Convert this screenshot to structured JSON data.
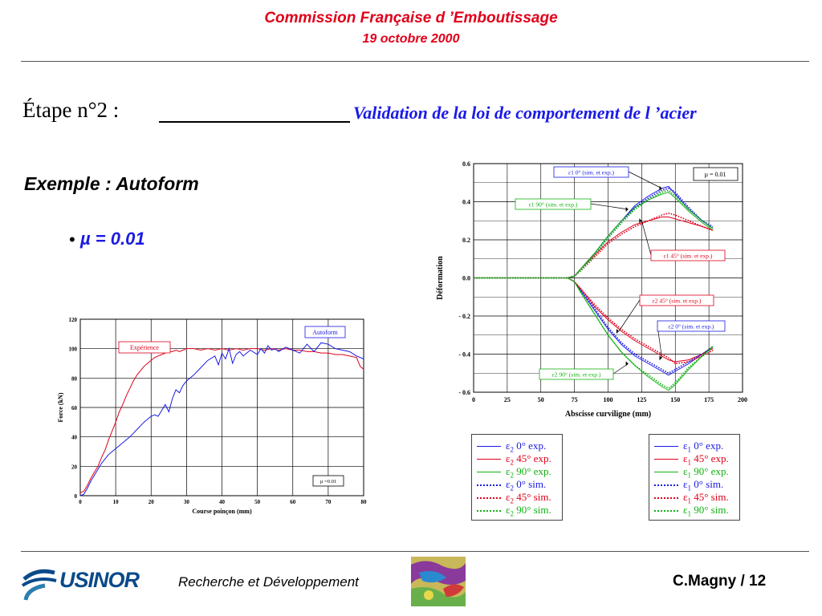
{
  "header": {
    "title": "Commission Française d ’Emboutissage",
    "date": "19 octobre 2000"
  },
  "slide": {
    "step": "Étape n°2 :",
    "step_title": "Validation de la loi de comportement de l ’acier",
    "example": "Exemple : Autoform",
    "bullet": "•",
    "mu_item": "µ = 0.01"
  },
  "footer": {
    "logo_text": "USINOR",
    "department": "Recherche et Développement",
    "page_ref": "C.Magny / 12"
  },
  "colors": {
    "blue": "#1a1ae6",
    "red": "#e0001a",
    "green": "#12b212",
    "header_red": "#e0001a"
  },
  "chart_data": [
    {
      "type": "line",
      "xlabel": "Course poinçon (mm)",
      "ylabel": "Force (kN)",
      "xlim": [
        0,
        80
      ],
      "ylim": [
        0,
        120
      ],
      "xticks": [
        "0",
        "10",
        "20",
        "30",
        "40",
        "50",
        "60",
        "70",
        "80"
      ],
      "yticks": [
        "0",
        "20",
        "40",
        "60",
        "80",
        "100",
        "120"
      ],
      "grid": true,
      "annotations": [
        "Expérience",
        "Autoform",
        "µ =0.01"
      ],
      "series": [
        {
          "name": "Expérience",
          "color": "#e0001a",
          "x": [
            0,
            1,
            2,
            3,
            4,
            5,
            6,
            7,
            8,
            9,
            10,
            11,
            12,
            13,
            14,
            15,
            16,
            17,
            18,
            19,
            20,
            21,
            22,
            23,
            24,
            25,
            26,
            27,
            28,
            29,
            30,
            32,
            34,
            36,
            38,
            40,
            42,
            44,
            46,
            48,
            50,
            52,
            54,
            56,
            58,
            60,
            62,
            64,
            66,
            68,
            70,
            72,
            74,
            76,
            78,
            79,
            80
          ],
          "y": [
            2,
            3,
            7,
            12,
            16,
            20,
            26,
            31,
            38,
            44,
            50,
            57,
            62,
            68,
            73,
            78,
            82,
            85,
            88,
            90,
            92,
            94,
            95,
            96,
            97,
            98,
            98,
            99,
            98,
            99,
            100,
            100,
            99,
            100,
            99,
            100,
            99,
            100,
            99,
            100,
            100,
            99,
            100,
            99,
            100,
            99,
            99,
            98,
            98,
            97,
            97,
            96,
            96,
            95,
            94,
            88,
            86
          ]
        },
        {
          "name": "Autoform",
          "color": "#1a1ae6",
          "x": [
            0,
            1,
            2,
            3,
            4,
            5,
            6,
            7,
            8,
            9,
            10,
            12,
            14,
            16,
            18,
            19,
            20,
            21,
            22,
            23,
            24,
            25,
            26,
            27,
            28,
            29,
            30,
            32,
            34,
            36,
            38,
            39,
            40,
            41,
            42,
            43,
            44,
            45,
            46,
            48,
            50,
            51,
            52,
            53,
            54,
            55,
            56,
            58,
            60,
            62,
            64,
            66,
            68,
            70,
            72,
            74,
            76,
            78,
            80
          ],
          "y": [
            0,
            1,
            5,
            10,
            14,
            18,
            22,
            25,
            28,
            30,
            32,
            36,
            40,
            45,
            50,
            52,
            54,
            55,
            54,
            58,
            62,
            57,
            66,
            72,
            70,
            75,
            78,
            82,
            87,
            92,
            95,
            89,
            97,
            93,
            100,
            90,
            96,
            98,
            95,
            99,
            96,
            100,
            97,
            102,
            99,
            100,
            98,
            101,
            99,
            97,
            103,
            98,
            104,
            103,
            100,
            99,
            98,
            95,
            93
          ]
        }
      ]
    },
    {
      "type": "line",
      "xlabel": "Abscisse curviligne (mm)",
      "ylabel": "Déformation",
      "xlim": [
        0,
        200
      ],
      "ylim": [
        -0.6,
        0.6
      ],
      "xticks": [
        "0",
        "25",
        "50",
        "75",
        "100",
        "125",
        "150",
        "175",
        "200"
      ],
      "yticks": [
        "0.6",
        "0.4",
        "0.2",
        "0.0",
        "- 0.2",
        "- 0.4",
        "- 0.6"
      ],
      "grid": true,
      "annotations": [
        "ε1 0° (sim. et exp.)",
        "ε1 90° (sim. et exp.)",
        "ε1 45° (sim. et exp.)",
        "ε2 45° (sim. et exp.)",
        "ε2 0° (sim. et exp.)",
        "ε2 90° (sim. et exp.)",
        "µ = 0.01"
      ],
      "series": [
        {
          "name": "ε1 0° exp.",
          "color": "#1a1ae6",
          "style": "solid",
          "x": [
            0,
            50,
            70,
            75,
            80,
            90,
            100,
            110,
            120,
            130,
            140,
            145,
            150,
            160,
            170,
            178
          ],
          "y": [
            0,
            0,
            0,
            0.01,
            0.05,
            0.13,
            0.22,
            0.3,
            0.38,
            0.43,
            0.47,
            0.48,
            0.44,
            0.36,
            0.3,
            0.26
          ]
        },
        {
          "name": "ε1 45° exp.",
          "color": "#e0001a",
          "style": "solid",
          "x": [
            0,
            50,
            70,
            75,
            80,
            90,
            100,
            110,
            120,
            130,
            140,
            145,
            150,
            160,
            170,
            178
          ],
          "y": [
            0,
            0,
            0,
            0.01,
            0.05,
            0.12,
            0.19,
            0.24,
            0.28,
            0.3,
            0.32,
            0.32,
            0.31,
            0.29,
            0.27,
            0.25
          ]
        },
        {
          "name": "ε1 90° exp.",
          "color": "#12b212",
          "style": "solid",
          "x": [
            0,
            50,
            70,
            75,
            80,
            90,
            100,
            110,
            120,
            130,
            140,
            145,
            150,
            160,
            170,
            178
          ],
          "y": [
            0,
            0,
            0,
            0.01,
            0.05,
            0.13,
            0.22,
            0.3,
            0.37,
            0.41,
            0.44,
            0.45,
            0.42,
            0.35,
            0.29,
            0.25
          ]
        },
        {
          "name": "ε1 0° sim.",
          "color": "#1a1ae6",
          "style": "dotted",
          "x": [
            0,
            50,
            70,
            75,
            80,
            90,
            100,
            110,
            120,
            130,
            140,
            145,
            150,
            160,
            170,
            178
          ],
          "y": [
            0,
            0,
            0,
            0.01,
            0.04,
            0.12,
            0.21,
            0.29,
            0.37,
            0.42,
            0.46,
            0.47,
            0.45,
            0.37,
            0.3,
            0.27
          ]
        },
        {
          "name": "ε1 45° sim.",
          "color": "#e0001a",
          "style": "dotted",
          "x": [
            0,
            50,
            70,
            75,
            80,
            90,
            100,
            110,
            120,
            130,
            140,
            145,
            150,
            160,
            170,
            178
          ],
          "y": [
            0,
            0,
            0,
            0.01,
            0.04,
            0.11,
            0.18,
            0.23,
            0.27,
            0.3,
            0.33,
            0.34,
            0.33,
            0.3,
            0.27,
            0.25
          ]
        },
        {
          "name": "ε1 90° sim.",
          "color": "#12b212",
          "style": "dotted",
          "x": [
            0,
            50,
            70,
            75,
            80,
            90,
            100,
            110,
            120,
            130,
            140,
            145,
            150,
            160,
            170,
            178
          ],
          "y": [
            0,
            0,
            0,
            0.01,
            0.04,
            0.12,
            0.21,
            0.29,
            0.36,
            0.41,
            0.45,
            0.46,
            0.43,
            0.36,
            0.3,
            0.26
          ]
        },
        {
          "name": "ε2 0° exp.",
          "color": "#1a1ae6",
          "style": "solid",
          "x": [
            0,
            50,
            70,
            75,
            80,
            90,
            100,
            110,
            120,
            130,
            140,
            145,
            150,
            160,
            170,
            178
          ],
          "y": [
            0,
            0,
            0,
            -0.02,
            -0.07,
            -0.17,
            -0.27,
            -0.35,
            -0.41,
            -0.45,
            -0.49,
            -0.51,
            -0.49,
            -0.45,
            -0.4,
            -0.36
          ]
        },
        {
          "name": "ε2 45° exp.",
          "color": "#e0001a",
          "style": "solid",
          "x": [
            0,
            50,
            70,
            75,
            80,
            90,
            100,
            110,
            120,
            130,
            140,
            145,
            150,
            160,
            170,
            178
          ],
          "y": [
            0,
            0,
            0,
            -0.02,
            -0.06,
            -0.15,
            -0.22,
            -0.28,
            -0.33,
            -0.37,
            -0.41,
            -0.43,
            -0.44,
            -0.43,
            -0.4,
            -0.37
          ]
        },
        {
          "name": "ε2 90° exp.",
          "color": "#12b212",
          "style": "solid",
          "x": [
            0,
            50,
            70,
            75,
            80,
            90,
            100,
            110,
            120,
            130,
            140,
            145,
            150,
            160,
            170,
            178
          ],
          "y": [
            0,
            0,
            0,
            -0.02,
            -0.08,
            -0.19,
            -0.3,
            -0.39,
            -0.46,
            -0.52,
            -0.57,
            -0.59,
            -0.56,
            -0.48,
            -0.41,
            -0.36
          ]
        },
        {
          "name": "ε2 0° sim.",
          "color": "#1a1ae6",
          "style": "dotted",
          "x": [
            0,
            50,
            70,
            75,
            80,
            90,
            100,
            110,
            120,
            130,
            140,
            145,
            150,
            160,
            170,
            178
          ],
          "y": [
            0,
            0,
            0,
            -0.02,
            -0.07,
            -0.16,
            -0.26,
            -0.34,
            -0.4,
            -0.44,
            -0.48,
            -0.5,
            -0.48,
            -0.44,
            -0.4,
            -0.36
          ]
        },
        {
          "name": "ε2 45° sim.",
          "color": "#e0001a",
          "style": "dotted",
          "x": [
            0,
            50,
            70,
            75,
            80,
            90,
            100,
            110,
            120,
            130,
            140,
            145,
            150,
            160,
            170,
            178
          ],
          "y": [
            0,
            0,
            0,
            -0.02,
            -0.06,
            -0.14,
            -0.21,
            -0.27,
            -0.32,
            -0.36,
            -0.4,
            -0.42,
            -0.45,
            -0.44,
            -0.41,
            -0.38
          ]
        },
        {
          "name": "ε2 90° sim.",
          "color": "#12b212",
          "style": "dotted",
          "x": [
            0,
            50,
            70,
            75,
            80,
            90,
            100,
            110,
            120,
            130,
            140,
            145,
            150,
            160,
            170,
            178
          ],
          "y": [
            0,
            0,
            0,
            -0.02,
            -0.08,
            -0.19,
            -0.3,
            -0.39,
            -0.46,
            -0.51,
            -0.56,
            -0.58,
            -0.55,
            -0.47,
            -0.41,
            -0.36
          ]
        }
      ]
    }
  ],
  "legends": {
    "left": [
      {
        "eps": "ε",
        "sub": "2",
        "text": " 0° exp.",
        "color": "#1a1ae6",
        "style": "solid"
      },
      {
        "eps": "ε",
        "sub": "2",
        "text": " 45° exp.",
        "color": "#e0001a",
        "style": "solid"
      },
      {
        "eps": "ε",
        "sub": "2",
        "text": " 90° exp.",
        "color": "#12b212",
        "style": "solid"
      },
      {
        "eps": "ε",
        "sub": "2",
        "text": " 0° sim.",
        "color": "#1a1ae6",
        "style": "dotted"
      },
      {
        "eps": "ε",
        "sub": "2",
        "text": " 45° sim.",
        "color": "#e0001a",
        "style": "dotted"
      },
      {
        "eps": "ε",
        "sub": "2",
        "text": " 90° sim.",
        "color": "#12b212",
        "style": "dotted"
      }
    ],
    "right": [
      {
        "eps": "ε",
        "sub": "1",
        "text": " 0° exp.",
        "color": "#1a1ae6",
        "style": "solid"
      },
      {
        "eps": "ε",
        "sub": "1",
        "text": " 45° exp.",
        "color": "#e0001a",
        "style": "solid"
      },
      {
        "eps": "ε",
        "sub": "1",
        "text": " 90° exp.",
        "color": "#12b212",
        "style": "solid"
      },
      {
        "eps": "ε",
        "sub": "1",
        "text": " 0° sim.",
        "color": "#1a1ae6",
        "style": "dotted"
      },
      {
        "eps": "ε",
        "sub": "1",
        "text": " 45° sim.",
        "color": "#e0001a",
        "style": "dotted"
      },
      {
        "eps": "ε",
        "sub": "1",
        "text": " 90° sim.",
        "color": "#12b212",
        "style": "dotted"
      }
    ]
  }
}
